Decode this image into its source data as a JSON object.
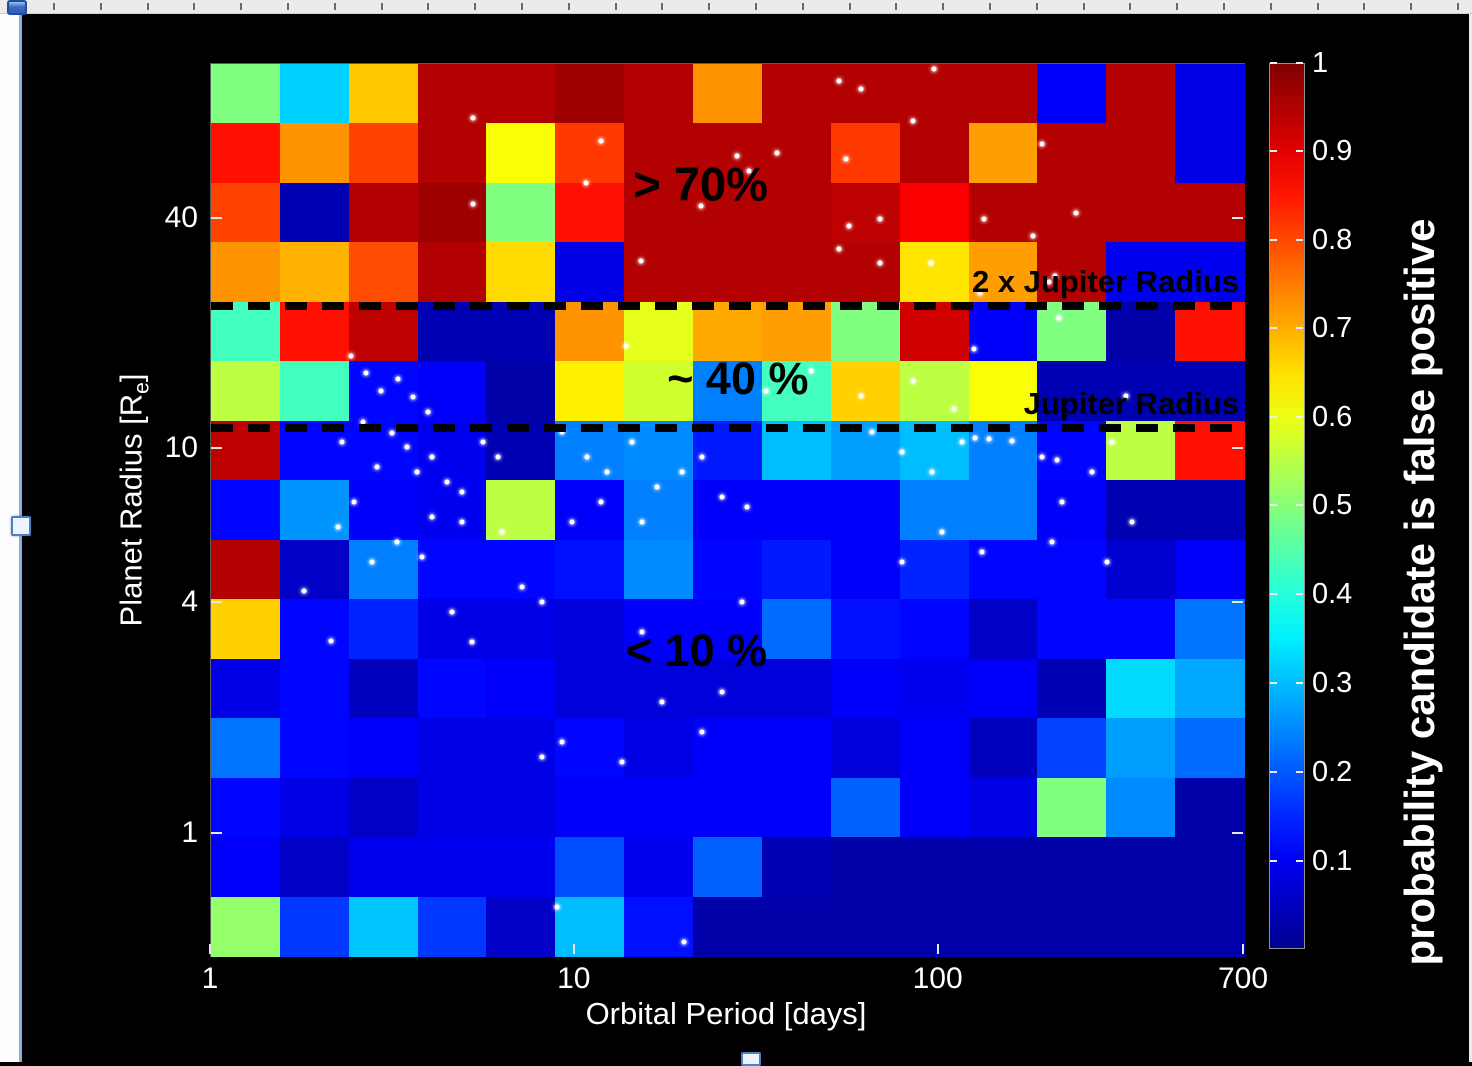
{
  "chart_data": {
    "type": "heatmap",
    "title": "",
    "xlabel": "Orbital Period [days]",
    "ylabel": "Planet Radius [Re]",
    "ylabel_parts": {
      "prefix": "Planet Radius [R",
      "sub": "e",
      "suffix": "]"
    },
    "colorbar_label": "probability candidate is false positive",
    "x_scale": "log",
    "y_scale": "log",
    "x_range": [
      1,
      700
    ],
    "y_range": [
      0.47,
      102
    ],
    "colorbar_range": [
      0,
      1
    ],
    "colormap": "jet",
    "grid": {
      "rows": 15,
      "cols": 15
    },
    "x_ticks": [
      {
        "label": "1",
        "pos": 0.0
      },
      {
        "label": "10",
        "pos": 0.3522
      },
      {
        "label": "100",
        "pos": 0.7044
      },
      {
        "label": "700",
        "pos": 1.0
      }
    ],
    "y_ticks": [
      {
        "label": "40",
        "pos": 0.1738
      },
      {
        "label": "10",
        "pos": 0.4316
      },
      {
        "label": "4",
        "pos": 0.6043
      },
      {
        "label": "1",
        "pos": 0.8632
      }
    ],
    "colorbar_ticks": [
      {
        "label": "1",
        "pos": 0.0
      },
      {
        "label": "0.9",
        "pos": 0.0996
      },
      {
        "label": "0.8",
        "pos": 0.2002
      },
      {
        "label": "0.7",
        "pos": 0.2998
      },
      {
        "label": "0.6",
        "pos": 0.4005
      },
      {
        "label": "0.5",
        "pos": 0.5
      },
      {
        "label": "0.4",
        "pos": 0.6007
      },
      {
        "label": "0.3",
        "pos": 0.7014
      },
      {
        "label": "0.2",
        "pos": 0.802
      },
      {
        "label": "0.1",
        "pos": 0.9027
      }
    ],
    "region_labels": [
      {
        "text": "> 70%",
        "x": 0.474,
        "y": 0.135
      },
      {
        "text": "~ 40 %",
        "x": 0.51,
        "y": 0.353
      },
      {
        "text": "< 10 %",
        "x": 0.47,
        "y": 0.658
      }
    ],
    "reference_lines": [
      {
        "label": "2 x Jupiter Radius",
        "y": 0.271
      },
      {
        "label": "Jupiter Radius",
        "y": 0.408
      }
    ],
    "values": [
      [
        0.5,
        0.33,
        0.68,
        0.95,
        0.95,
        0.97,
        0.95,
        0.73,
        0.95,
        0.95,
        0.95,
        0.95,
        0.12,
        0.95,
        0.1
      ],
      [
        0.86,
        0.73,
        0.81,
        0.95,
        0.62,
        0.82,
        0.95,
        0.95,
        0.95,
        0.82,
        0.95,
        0.72,
        0.95,
        0.95,
        0.1
      ],
      [
        0.81,
        0.05,
        0.95,
        0.97,
        0.5,
        0.86,
        0.95,
        0.95,
        0.95,
        0.94,
        0.88,
        0.95,
        0.95,
        0.95,
        0.95
      ],
      [
        0.73,
        0.7,
        0.8,
        0.95,
        0.66,
        0.1,
        0.95,
        0.95,
        0.95,
        0.95,
        0.65,
        0.72,
        0.95,
        0.11,
        0.11
      ],
      [
        0.44,
        0.86,
        0.94,
        0.05,
        0.05,
        0.73,
        0.6,
        0.71,
        0.72,
        0.5,
        0.92,
        0.12,
        0.5,
        0.04,
        0.86
      ],
      [
        0.56,
        0.44,
        0.13,
        0.12,
        0.04,
        0.64,
        0.58,
        0.25,
        0.44,
        0.67,
        0.56,
        0.62,
        0.05,
        0.05,
        0.05
      ],
      [
        0.94,
        0.13,
        0.13,
        0.11,
        0.05,
        0.25,
        0.26,
        0.15,
        0.31,
        0.28,
        0.31,
        0.25,
        0.13,
        0.56,
        0.86
      ],
      [
        0.13,
        0.27,
        0.12,
        0.11,
        0.56,
        0.12,
        0.25,
        0.12,
        0.12,
        0.12,
        0.25,
        0.25,
        0.12,
        0.05,
        0.05
      ],
      [
        0.95,
        0.07,
        0.25,
        0.13,
        0.13,
        0.14,
        0.26,
        0.13,
        0.15,
        0.12,
        0.16,
        0.13,
        0.13,
        0.08,
        0.12
      ],
      [
        0.67,
        0.13,
        0.16,
        0.1,
        0.1,
        0.09,
        0.12,
        0.12,
        0.23,
        0.14,
        0.13,
        0.07,
        0.13,
        0.13,
        0.24
      ],
      [
        0.1,
        0.13,
        0.06,
        0.13,
        0.12,
        0.09,
        0.09,
        0.09,
        0.09,
        0.12,
        0.11,
        0.12,
        0.05,
        0.34,
        0.29
      ],
      [
        0.24,
        0.13,
        0.12,
        0.1,
        0.1,
        0.13,
        0.1,
        0.12,
        0.12,
        0.09,
        0.12,
        0.06,
        0.19,
        0.28,
        0.23
      ],
      [
        0.13,
        0.1,
        0.07,
        0.1,
        0.1,
        0.12,
        0.12,
        0.12,
        0.12,
        0.22,
        0.12,
        0.1,
        0.5,
        0.26,
        0.04
      ],
      [
        0.12,
        0.07,
        0.11,
        0.11,
        0.11,
        0.2,
        0.11,
        0.22,
        0.05,
        0.04,
        0.04,
        0.04,
        0.04,
        0.04,
        0.04
      ],
      [
        0.52,
        0.18,
        0.32,
        0.18,
        0.07,
        0.31,
        0.14,
        0.04,
        0.04,
        0.04,
        0.04,
        0.04,
        0.04,
        0.04,
        0.04
      ]
    ],
    "scatter_points": [
      [
        0.254,
        0.061
      ],
      [
        0.378,
        0.086
      ],
      [
        0.509,
        0.103
      ],
      [
        0.548,
        0.1
      ],
      [
        0.521,
        0.12
      ],
      [
        0.615,
        0.107
      ],
      [
        0.629,
        0.028
      ],
      [
        0.68,
        0.064
      ],
      [
        0.363,
        0.133
      ],
      [
        0.474,
        0.159
      ],
      [
        0.748,
        0.174
      ],
      [
        0.618,
        0.182
      ],
      [
        0.416,
        0.221
      ],
      [
        0.697,
        0.223
      ],
      [
        0.744,
        0.257
      ],
      [
        0.811,
        0.244
      ],
      [
        0.837,
        0.167
      ],
      [
        0.804,
        0.09
      ],
      [
        0.7,
        0.006
      ],
      [
        0.608,
        0.019
      ],
      [
        0.648,
        0.174
      ],
      [
        0.608,
        0.207
      ],
      [
        0.648,
        0.223
      ],
      [
        0.796,
        0.193
      ],
      [
        0.817,
        0.238
      ],
      [
        0.254,
        0.157
      ],
      [
        0.821,
        0.285
      ],
      [
        0.739,
        0.319
      ],
      [
        0.719,
        0.387
      ],
      [
        0.402,
        0.316
      ],
      [
        0.537,
        0.367
      ],
      [
        0.581,
        0.344
      ],
      [
        0.629,
        0.372
      ],
      [
        0.68,
        0.355
      ],
      [
        0.886,
        0.372
      ],
      [
        0.136,
        0.327
      ],
      [
        0.15,
        0.346
      ],
      [
        0.165,
        0.367
      ],
      [
        0.181,
        0.353
      ],
      [
        0.196,
        0.373
      ],
      [
        0.21,
        0.39
      ],
      [
        0.147,
        0.401
      ],
      [
        0.175,
        0.414
      ],
      [
        0.19,
        0.429
      ],
      [
        0.214,
        0.441
      ],
      [
        0.161,
        0.452
      ],
      [
        0.199,
        0.457
      ],
      [
        0.228,
        0.469
      ],
      [
        0.243,
        0.48
      ],
      [
        0.263,
        0.424
      ],
      [
        0.278,
        0.441
      ],
      [
        0.127,
        0.424
      ],
      [
        0.138,
        0.491
      ],
      [
        0.214,
        0.508
      ],
      [
        0.243,
        0.513
      ],
      [
        0.282,
        0.525
      ],
      [
        0.18,
        0.536
      ],
      [
        0.204,
        0.553
      ],
      [
        0.156,
        0.558
      ],
      [
        0.123,
        0.519
      ],
      [
        0.34,
        0.413
      ],
      [
        0.364,
        0.441
      ],
      [
        0.383,
        0.457
      ],
      [
        0.408,
        0.424
      ],
      [
        0.432,
        0.474
      ],
      [
        0.378,
        0.491
      ],
      [
        0.349,
        0.513
      ],
      [
        0.417,
        0.513
      ],
      [
        0.456,
        0.457
      ],
      [
        0.475,
        0.441
      ],
      [
        0.495,
        0.485
      ],
      [
        0.519,
        0.497
      ],
      [
        0.74,
        0.419
      ],
      [
        0.753,
        0.42
      ],
      [
        0.775,
        0.423
      ],
      [
        0.819,
        0.444
      ],
      [
        0.64,
        0.413
      ],
      [
        0.669,
        0.435
      ],
      [
        0.698,
        0.457
      ],
      [
        0.727,
        0.424
      ],
      [
        0.804,
        0.441
      ],
      [
        0.824,
        0.491
      ],
      [
        0.853,
        0.457
      ],
      [
        0.872,
        0.424
      ],
      [
        0.892,
        0.513
      ],
      [
        0.814,
        0.536
      ],
      [
        0.746,
        0.547
      ],
      [
        0.708,
        0.525
      ],
      [
        0.669,
        0.558
      ],
      [
        0.867,
        0.558
      ],
      [
        0.301,
        0.586
      ],
      [
        0.32,
        0.603
      ],
      [
        0.514,
        0.603
      ],
      [
        0.417,
        0.637
      ],
      [
        0.437,
        0.715
      ],
      [
        0.475,
        0.749
      ],
      [
        0.32,
        0.777
      ],
      [
        0.34,
        0.76
      ],
      [
        0.398,
        0.782
      ],
      [
        0.495,
        0.704
      ],
      [
        0.253,
        0.648
      ],
      [
        0.233,
        0.614
      ],
      [
        0.335,
        0.945
      ],
      [
        0.458,
        0.984
      ],
      [
        0.09,
        0.591
      ],
      [
        0.116,
        0.647
      ]
    ]
  }
}
